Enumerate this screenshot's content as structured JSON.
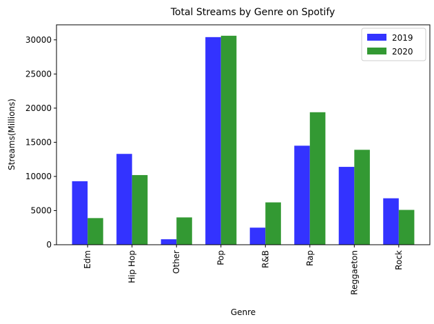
{
  "chart_data": {
    "type": "bar",
    "title": "Total Streams by Genre on Spotify",
    "xlabel": "Genre",
    "ylabel": "Streams(Millions)",
    "categories": [
      "Edm",
      "Hip Hop",
      "Other",
      "Pop",
      "R&B",
      "Rap",
      "Reggaeton",
      "Rock"
    ],
    "series": [
      {
        "name": "2019",
        "color": "#3333ff",
        "values": [
          9300,
          13300,
          800,
          30400,
          2500,
          14500,
          11400,
          6800
        ]
      },
      {
        "name": "2020",
        "color": "#339933",
        "values": [
          3900,
          10200,
          4000,
          30600,
          6200,
          19400,
          13900,
          5100
        ]
      }
    ],
    "ylim": [
      0,
      32200
    ],
    "yticks": [
      0,
      5000,
      10000,
      15000,
      20000,
      25000,
      30000
    ],
    "legend_position": "top-right",
    "grid": false
  }
}
